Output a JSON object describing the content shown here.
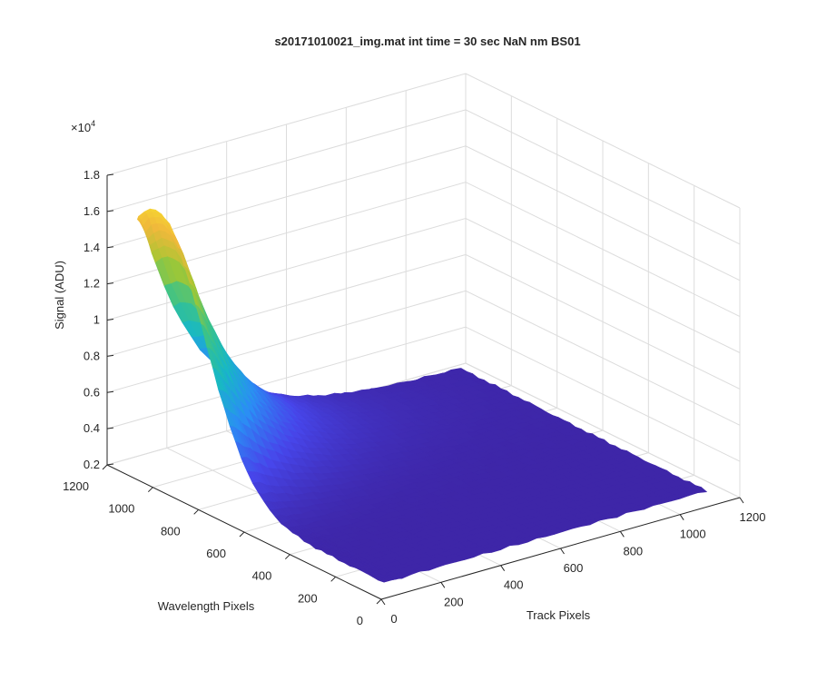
{
  "chart_data": {
    "type": "surface",
    "title": "s20171010021_img.mat int time = 30 sec  NaN nm BS01",
    "xlabel": "Track Pixels",
    "ylabel": "Wavelength Pixels",
    "zlabel": "Signal (ADU)",
    "zscale_label": "×10",
    "zscale_exp": "4",
    "x_ticks": [
      "0",
      "200",
      "400",
      "600",
      "800",
      "1000",
      "1200"
    ],
    "y_ticks": [
      "0",
      "200",
      "400",
      "600",
      "800",
      "1000",
      "1200"
    ],
    "z_ticks": [
      "0.2",
      "0.4",
      "0.6",
      "0.8",
      "1",
      "1.2",
      "1.4",
      "1.6",
      "1.8"
    ],
    "xlim": [
      0,
      1200
    ],
    "ylim": [
      0,
      1200
    ],
    "zlim": [
      0.2,
      1.8
    ],
    "baseline": 0.25,
    "peak_value": 1.77,
    "grid": true,
    "colormap": [
      "#3e26a8",
      "#4746eb",
      "#2b8ef4",
      "#18b8c4",
      "#3dc387",
      "#a2c733",
      "#f0b83b",
      "#f9e52c"
    ]
  }
}
